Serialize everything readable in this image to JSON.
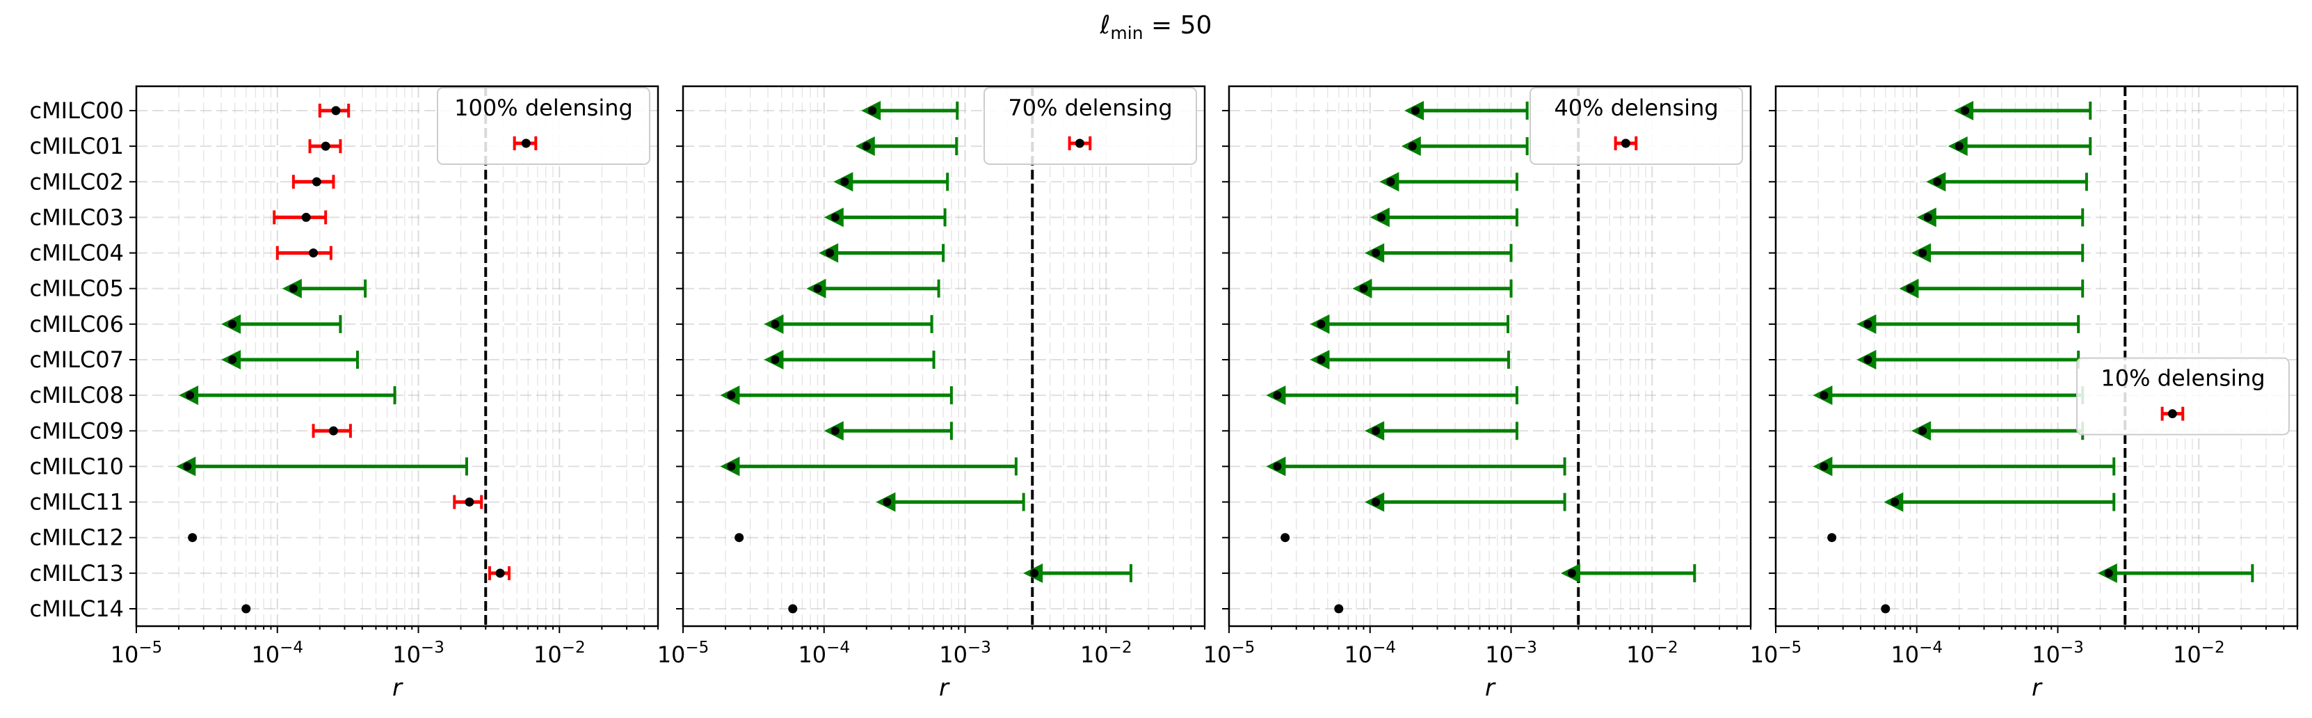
{
  "figure": {
    "suptitle_main": "ℓ",
    "suptitle_sub": "min",
    "suptitle_rest": " = 50"
  },
  "chart_data": {
    "type": "scatter",
    "x_scale": "log",
    "xlim": [
      1e-05,
      0.05
    ],
    "xlabel": "r",
    "x_ticks": [
      1e-05,
      0.0001,
      0.001,
      0.01
    ],
    "x_tick_labels": [
      {
        "base": "10",
        "exp": "−5"
      },
      {
        "base": "10",
        "exp": "−4"
      },
      {
        "base": "10",
        "exp": "−3"
      },
      {
        "base": "10",
        "exp": "−2"
      }
    ],
    "categories": [
      "cMILC00",
      "cMILC01",
      "cMILC02",
      "cMILC03",
      "cMILC04",
      "cMILC05",
      "cMILC06",
      "cMILC07",
      "cMILC08",
      "cMILC09",
      "cMILC10",
      "cMILC11",
      "cMILC12",
      "cMILC13",
      "cMILC14"
    ],
    "reference_line_x": 0.003,
    "grid": true,
    "colors": {
      "detection": "#ff0000",
      "upper_limit": "#008000",
      "point": "#000000",
      "reference": "#000000"
    },
    "panels": [
      {
        "legend": "100% delensing",
        "legend_row": 0,
        "detections": [
          {
            "row": 0,
            "x": 0.00026,
            "lo": 0.0002,
            "hi": 0.00032
          },
          {
            "row": 1,
            "x": 0.00022,
            "lo": 0.00017,
            "hi": 0.00028
          },
          {
            "row": 2,
            "x": 0.00019,
            "lo": 0.00013,
            "hi": 0.00025
          },
          {
            "row": 3,
            "x": 0.00016,
            "lo": 9.5e-05,
            "hi": 0.00022
          },
          {
            "row": 4,
            "x": 0.00018,
            "lo": 0.0001,
            "hi": 0.00024
          },
          {
            "row": 9,
            "x": 0.00025,
            "lo": 0.00018,
            "hi": 0.00033
          },
          {
            "row": 11,
            "x": 0.0023,
            "lo": 0.0018,
            "hi": 0.0028
          },
          {
            "row": 13,
            "x": 0.0038,
            "lo": 0.0032,
            "hi": 0.0044
          }
        ],
        "upper_limits": [
          {
            "row": 5,
            "x": 0.00013,
            "ul": 0.00042
          },
          {
            "row": 6,
            "x": 4.8e-05,
            "ul": 0.00028
          },
          {
            "row": 7,
            "x": 4.8e-05,
            "ul": 0.00037
          },
          {
            "row": 8,
            "x": 2.4e-05,
            "ul": 0.00068
          },
          {
            "row": 10,
            "x": 2.3e-05,
            "ul": 0.0022
          }
        ],
        "points": [
          {
            "row": 12,
            "x": 2.5e-05
          },
          {
            "row": 14,
            "x": 6e-05
          }
        ],
        "legend_marker": {
          "x": 0.0058,
          "lo": 0.0048,
          "hi": 0.0068
        }
      },
      {
        "legend": "70% delensing",
        "legend_row": 0,
        "detections": [],
        "upper_limits": [
          {
            "row": 0,
            "x": 0.00022,
            "ul": 0.00088
          },
          {
            "row": 1,
            "x": 0.0002,
            "ul": 0.00087
          },
          {
            "row": 2,
            "x": 0.00014,
            "ul": 0.00075
          },
          {
            "row": 3,
            "x": 0.00012,
            "ul": 0.00072
          },
          {
            "row": 4,
            "x": 0.00011,
            "ul": 0.0007
          },
          {
            "row": 5,
            "x": 9e-05,
            "ul": 0.00065
          },
          {
            "row": 6,
            "x": 4.5e-05,
            "ul": 0.00058
          },
          {
            "row": 7,
            "x": 4.5e-05,
            "ul": 0.0006
          },
          {
            "row": 8,
            "x": 2.2e-05,
            "ul": 0.0008
          },
          {
            "row": 9,
            "x": 0.00012,
            "ul": 0.0008
          },
          {
            "row": 10,
            "x": 2.2e-05,
            "ul": 0.0023
          },
          {
            "row": 11,
            "x": 0.00028,
            "ul": 0.0026
          },
          {
            "row": 13,
            "x": 0.0031,
            "ul": 0.015
          }
        ],
        "points": [
          {
            "row": 12,
            "x": 2.5e-05
          },
          {
            "row": 14,
            "x": 6e-05
          }
        ],
        "legend_marker": {
          "x": 0.0065,
          "lo": 0.0055,
          "hi": 0.0077
        }
      },
      {
        "legend": "40% delensing",
        "legend_row": 0,
        "detections": [],
        "upper_limits": [
          {
            "row": 0,
            "x": 0.00021,
            "ul": 0.0013
          },
          {
            "row": 1,
            "x": 0.0002,
            "ul": 0.0013
          },
          {
            "row": 2,
            "x": 0.00014,
            "ul": 0.0011
          },
          {
            "row": 3,
            "x": 0.00012,
            "ul": 0.0011
          },
          {
            "row": 4,
            "x": 0.00011,
            "ul": 0.001
          },
          {
            "row": 5,
            "x": 9e-05,
            "ul": 0.001
          },
          {
            "row": 6,
            "x": 4.5e-05,
            "ul": 0.00095
          },
          {
            "row": 7,
            "x": 4.5e-05,
            "ul": 0.00096
          },
          {
            "row": 8,
            "x": 2.2e-05,
            "ul": 0.0011
          },
          {
            "row": 9,
            "x": 0.00011,
            "ul": 0.0011
          },
          {
            "row": 10,
            "x": 2.2e-05,
            "ul": 0.0024
          },
          {
            "row": 11,
            "x": 0.00011,
            "ul": 0.0024
          },
          {
            "row": 13,
            "x": 0.0027,
            "ul": 0.02
          }
        ],
        "points": [
          {
            "row": 12,
            "x": 2.5e-05
          },
          {
            "row": 14,
            "x": 6e-05
          }
        ],
        "legend_marker": {
          "x": 0.0065,
          "lo": 0.0055,
          "hi": 0.0077
        }
      },
      {
        "legend": "10% delensing",
        "legend_row": 7.6,
        "detections": [],
        "upper_limits": [
          {
            "row": 0,
            "x": 0.00022,
            "ul": 0.0017
          },
          {
            "row": 1,
            "x": 0.0002,
            "ul": 0.0017
          },
          {
            "row": 2,
            "x": 0.00014,
            "ul": 0.0016
          },
          {
            "row": 3,
            "x": 0.00012,
            "ul": 0.0015
          },
          {
            "row": 4,
            "x": 0.00011,
            "ul": 0.0015
          },
          {
            "row": 5,
            "x": 9e-05,
            "ul": 0.0015
          },
          {
            "row": 6,
            "x": 4.5e-05,
            "ul": 0.0014
          },
          {
            "row": 7,
            "x": 4.5e-05,
            "ul": 0.0014
          },
          {
            "row": 8,
            "x": 2.2e-05,
            "ul": 0.0015
          },
          {
            "row": 9,
            "x": 0.00011,
            "ul": 0.0015
          },
          {
            "row": 10,
            "x": 2.2e-05,
            "ul": 0.0025
          },
          {
            "row": 11,
            "x": 7e-05,
            "ul": 0.0025
          },
          {
            "row": 13,
            "x": 0.0023,
            "ul": 0.024
          }
        ],
        "points": [
          {
            "row": 12,
            "x": 2.5e-05
          },
          {
            "row": 14,
            "x": 6e-05
          }
        ],
        "legend_marker": {
          "x": 0.0065,
          "lo": 0.0055,
          "hi": 0.0077
        }
      }
    ]
  }
}
